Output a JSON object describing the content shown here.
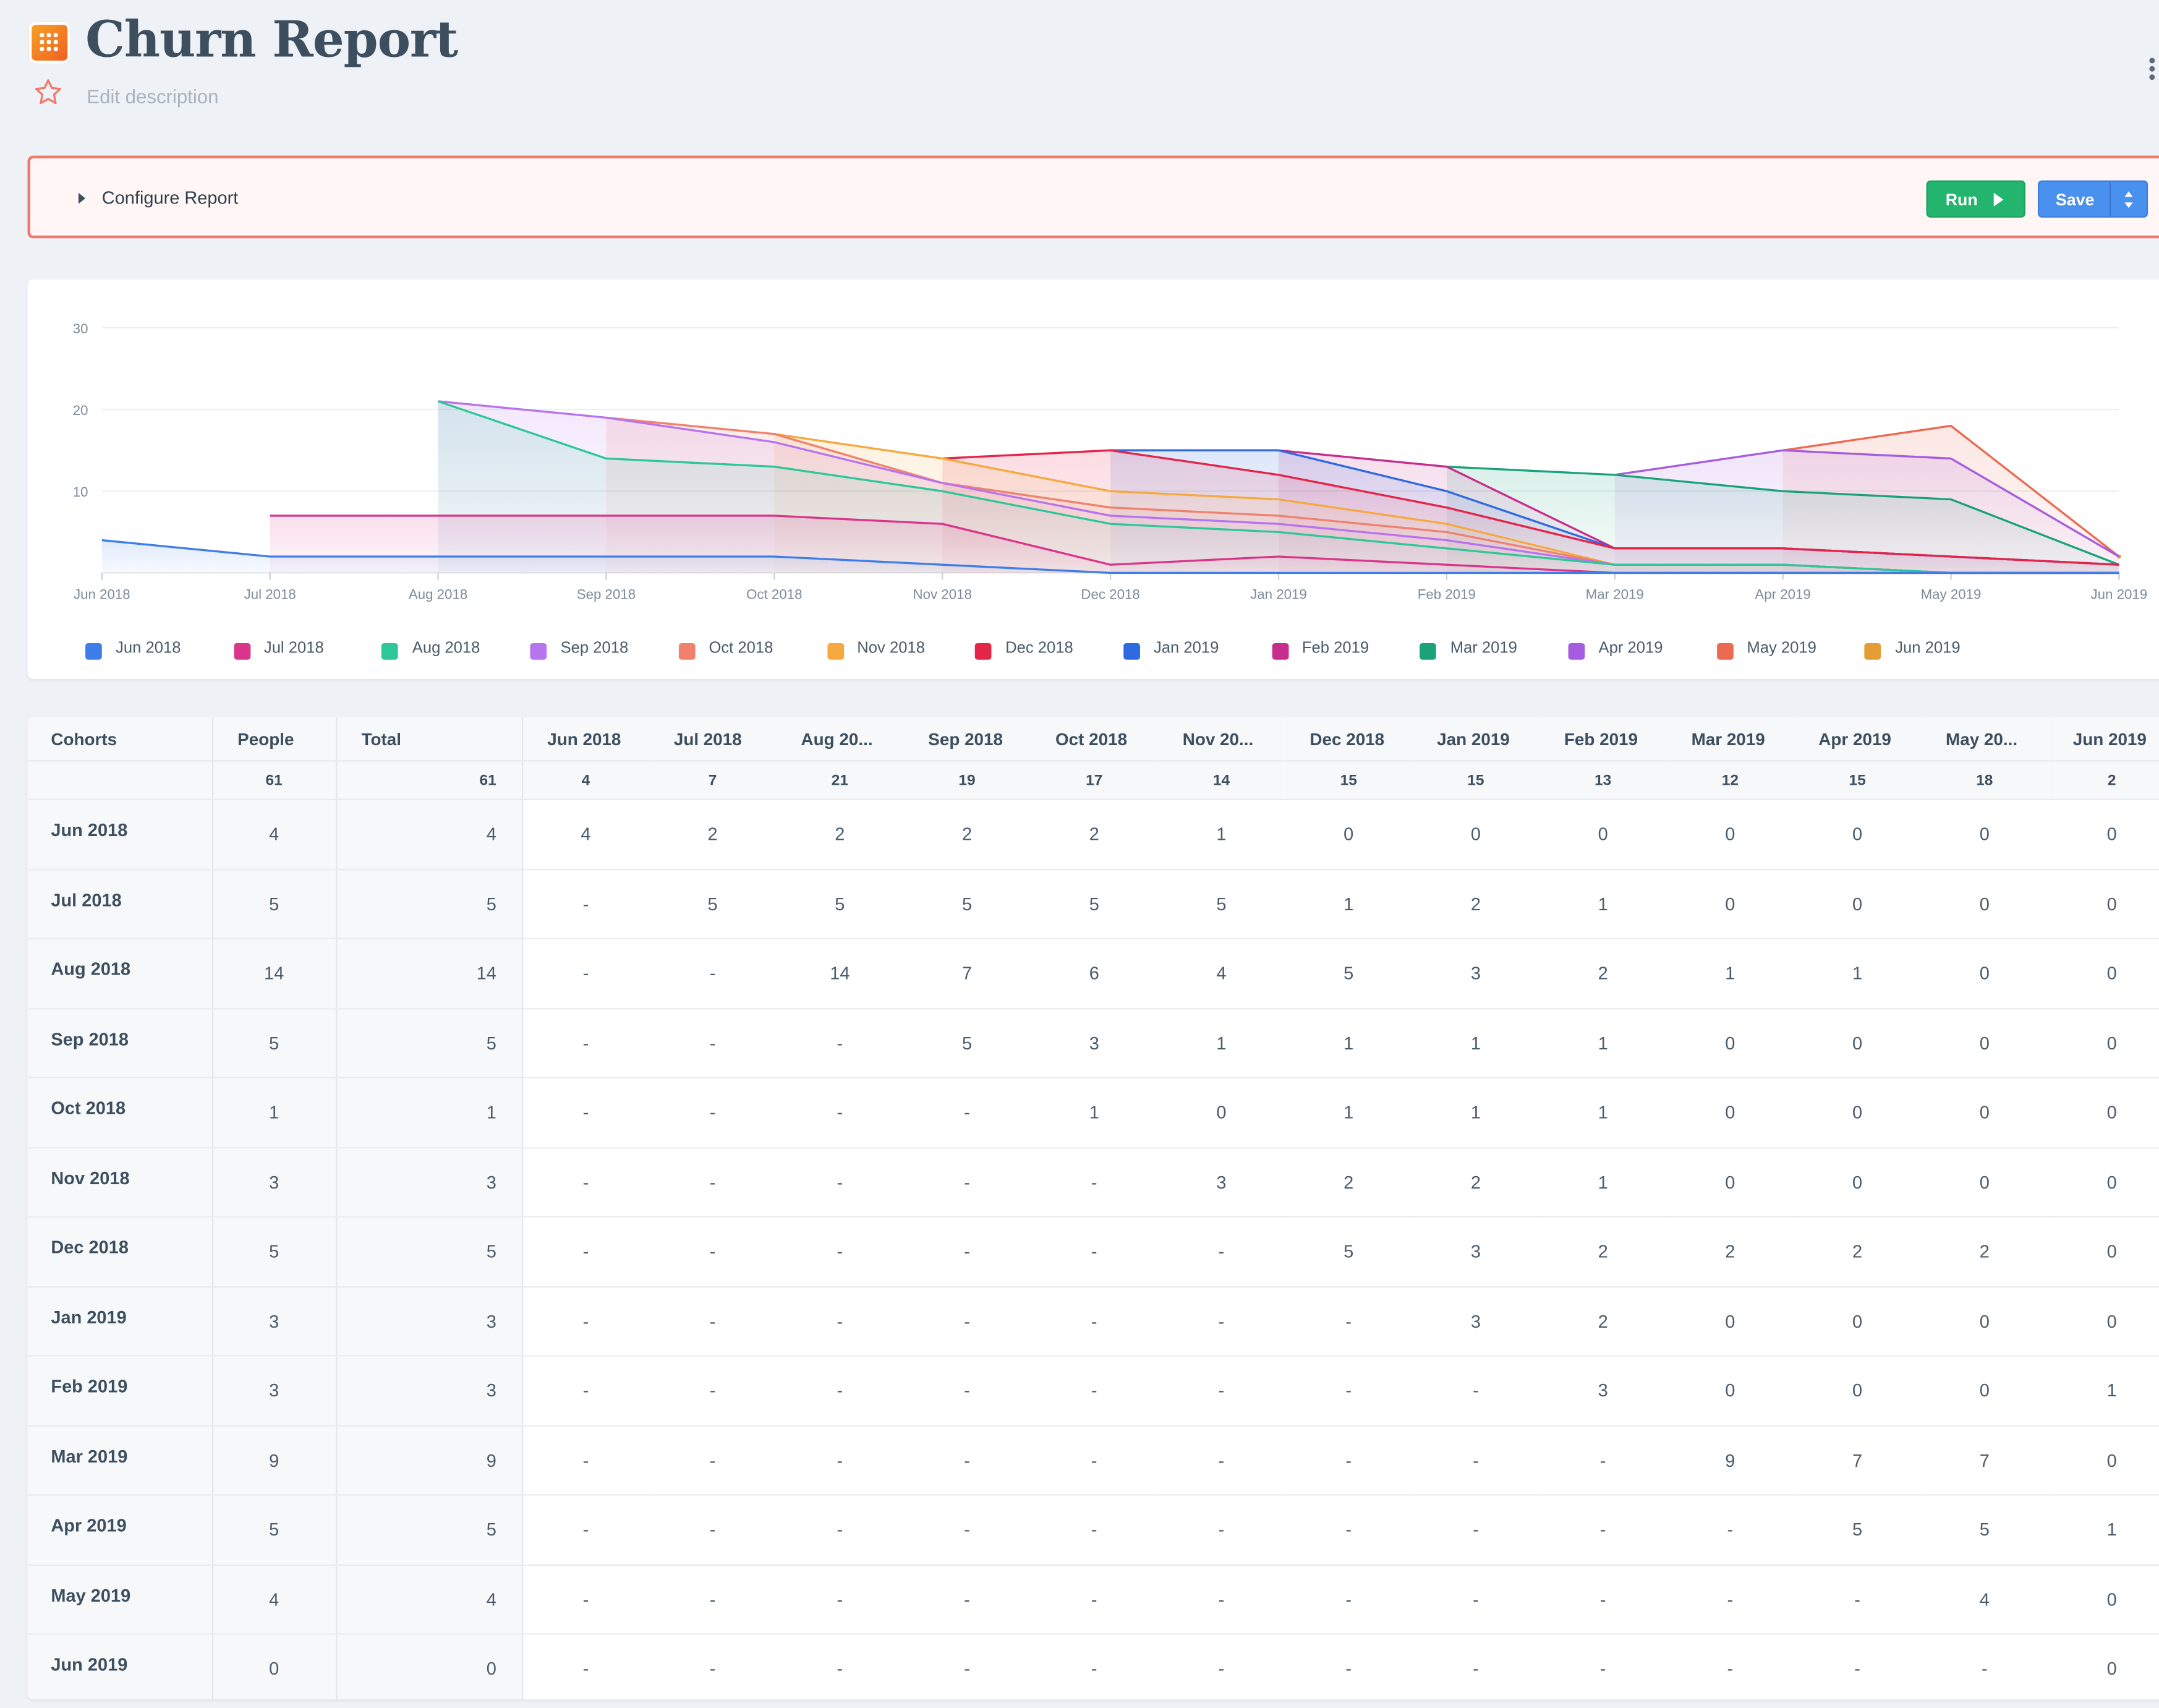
{
  "header": {
    "title": "Churn Report",
    "description_placeholder": "Edit description"
  },
  "config": {
    "label": "Configure Report",
    "run_label": "Run",
    "save_label": "Save"
  },
  "colors": {
    "run": "#23b46d",
    "save": "#4a90ee",
    "config_border": "#f3776b"
  },
  "chart_data": {
    "type": "area",
    "categories": [
      "Jun 2018",
      "Jul 2018",
      "Aug 2018",
      "Sep 2018",
      "Oct 2018",
      "Nov 2018",
      "Dec 2018",
      "Jan 2019",
      "Feb 2019",
      "Mar 2019",
      "Apr 2019",
      "May 2019",
      "Jun 2019"
    ],
    "yticks": [
      10,
      20,
      30
    ],
    "ylim": [
      0,
      30
    ],
    "grid": true,
    "legend_position": "bottom",
    "series": [
      {
        "name": "Jun 2018",
        "color": "#3f7ee8",
        "values": [
          4,
          2,
          2,
          2,
          2,
          1,
          0,
          0,
          0,
          0,
          0,
          0,
          0
        ]
      },
      {
        "name": "Jul 2018",
        "color": "#d9368b",
        "values": [
          null,
          7,
          7,
          7,
          7,
          6,
          1,
          2,
          1,
          0,
          0,
          0,
          0
        ]
      },
      {
        "name": "Aug 2018",
        "color": "#2ec79a",
        "values": [
          null,
          null,
          21,
          14,
          13,
          10,
          6,
          5,
          3,
          1,
          1,
          0,
          0
        ]
      },
      {
        "name": "Sep 2018",
        "color": "#b873ef",
        "values": [
          null,
          null,
          21,
          19,
          16,
          11,
          7,
          6,
          4,
          1,
          1,
          0,
          0
        ]
      },
      {
        "name": "Oct 2018",
        "color": "#f0816f",
        "values": [
          null,
          null,
          null,
          19,
          17,
          11,
          8,
          7,
          5,
          1,
          1,
          0,
          0
        ]
      },
      {
        "name": "Nov 2018",
        "color": "#f5a93f",
        "values": [
          null,
          null,
          null,
          null,
          17,
          14,
          10,
          9,
          6,
          1,
          1,
          0,
          0
        ]
      },
      {
        "name": "Dec 2018",
        "color": "#e5244a",
        "values": [
          null,
          null,
          null,
          null,
          null,
          14,
          15,
          12,
          8,
          3,
          3,
          2,
          1
        ]
      },
      {
        "name": "Jan 2019",
        "color": "#2f6ae0",
        "values": [
          null,
          null,
          null,
          null,
          null,
          null,
          15,
          15,
          10,
          3,
          3,
          2,
          1
        ]
      },
      {
        "name": "Feb 2019",
        "color": "#c62d8c",
        "values": [
          null,
          null,
          null,
          null,
          null,
          null,
          null,
          15,
          13,
          3,
          3,
          2,
          1
        ]
      },
      {
        "name": "Mar 2019",
        "color": "#1aa27a",
        "values": [
          null,
          null,
          null,
          null,
          null,
          null,
          null,
          null,
          13,
          12,
          10,
          9,
          1
        ]
      },
      {
        "name": "Apr 2019",
        "color": "#a65ce0",
        "values": [
          null,
          null,
          null,
          null,
          null,
          null,
          null,
          null,
          null,
          12,
          15,
          14,
          2
        ]
      },
      {
        "name": "May 2019",
        "color": "#ee6951",
        "values": [
          null,
          null,
          null,
          null,
          null,
          null,
          null,
          null,
          null,
          null,
          15,
          18,
          2
        ]
      },
      {
        "name": "Jun 2019",
        "color": "#e69c34",
        "values": [
          null,
          null,
          null,
          null,
          null,
          null,
          null,
          null,
          null,
          null,
          null,
          null,
          2
        ]
      }
    ]
  },
  "table": {
    "headers": [
      "Cohorts",
      "People",
      "Total",
      "Jun 2018",
      "Jul 2018",
      "Aug 20...",
      "Sep 2018",
      "Oct 2018",
      "Nov 20...",
      "Dec 2018",
      "Jan 2019",
      "Feb 2019",
      "Mar 2019",
      "Apr 2019",
      "May 20...",
      "Jun 2019"
    ],
    "totals": [
      "",
      "61",
      "61",
      "4",
      "7",
      "21",
      "19",
      "17",
      "14",
      "15",
      "15",
      "13",
      "12",
      "15",
      "18",
      "2"
    ],
    "rows": [
      [
        "Jun 2018",
        "4",
        "4",
        "4",
        "2",
        "2",
        "2",
        "2",
        "1",
        "0",
        "0",
        "0",
        "0",
        "0",
        "0",
        "0"
      ],
      [
        "Jul 2018",
        "5",
        "5",
        "-",
        "5",
        "5",
        "5",
        "5",
        "5",
        "1",
        "2",
        "1",
        "0",
        "0",
        "0",
        "0"
      ],
      [
        "Aug 2018",
        "14",
        "14",
        "-",
        "-",
        "14",
        "7",
        "6",
        "4",
        "5",
        "3",
        "2",
        "1",
        "1",
        "0",
        "0"
      ],
      [
        "Sep 2018",
        "5",
        "5",
        "-",
        "-",
        "-",
        "5",
        "3",
        "1",
        "1",
        "1",
        "1",
        "0",
        "0",
        "0",
        "0"
      ],
      [
        "Oct 2018",
        "1",
        "1",
        "-",
        "-",
        "-",
        "-",
        "1",
        "0",
        "1",
        "1",
        "1",
        "0",
        "0",
        "0",
        "0"
      ],
      [
        "Nov 2018",
        "3",
        "3",
        "-",
        "-",
        "-",
        "-",
        "-",
        "3",
        "2",
        "2",
        "1",
        "0",
        "0",
        "0",
        "0"
      ],
      [
        "Dec 2018",
        "5",
        "5",
        "-",
        "-",
        "-",
        "-",
        "-",
        "-",
        "5",
        "3",
        "2",
        "2",
        "2",
        "2",
        "0"
      ],
      [
        "Jan 2019",
        "3",
        "3",
        "-",
        "-",
        "-",
        "-",
        "-",
        "-",
        "-",
        "3",
        "2",
        "0",
        "0",
        "0",
        "0"
      ],
      [
        "Feb 2019",
        "3",
        "3",
        "-",
        "-",
        "-",
        "-",
        "-",
        "-",
        "-",
        "-",
        "3",
        "0",
        "0",
        "0",
        "1"
      ],
      [
        "Mar 2019",
        "9",
        "9",
        "-",
        "-",
        "-",
        "-",
        "-",
        "-",
        "-",
        "-",
        "-",
        "9",
        "7",
        "7",
        "0"
      ],
      [
        "Apr 2019",
        "5",
        "5",
        "-",
        "-",
        "-",
        "-",
        "-",
        "-",
        "-",
        "-",
        "-",
        "-",
        "5",
        "5",
        "1"
      ],
      [
        "May 2019",
        "4",
        "4",
        "-",
        "-",
        "-",
        "-",
        "-",
        "-",
        "-",
        "-",
        "-",
        "-",
        "-",
        "4",
        "0"
      ],
      [
        "Jun 2019",
        "0",
        "0",
        "-",
        "-",
        "-",
        "-",
        "-",
        "-",
        "-",
        "-",
        "-",
        "-",
        "-",
        "-",
        "0"
      ]
    ]
  }
}
